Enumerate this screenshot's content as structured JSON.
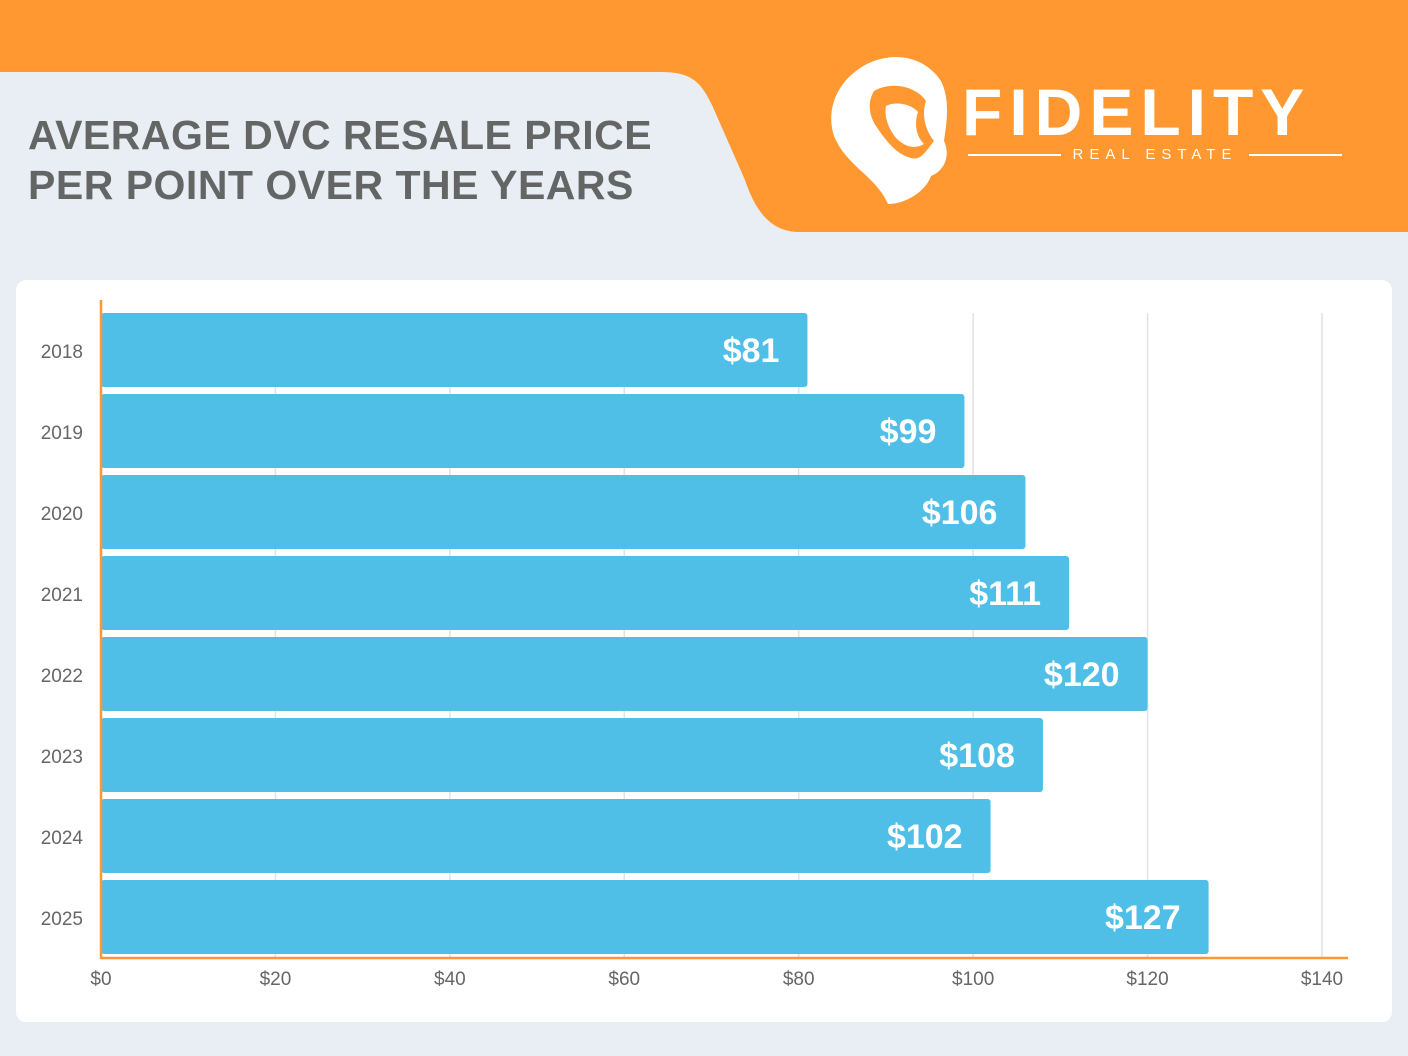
{
  "header": {
    "title_line1": "AVERAGE DVC RESALE PRICE",
    "title_line2": "PER POINT OVER THE YEARS"
  },
  "logo": {
    "icon": "lion-head-icon",
    "brand": "FIDELITY",
    "tagline": "REAL ESTATE"
  },
  "colors": {
    "orange": "#ff9830",
    "bar": "#4fbfe8",
    "title": "#646665",
    "background": "#e9edf4"
  },
  "chart_data": {
    "type": "bar",
    "orientation": "horizontal",
    "categories": [
      "2018",
      "2019",
      "2020",
      "2021",
      "2022",
      "2023",
      "2024",
      "2025"
    ],
    "values": [
      81,
      99,
      106,
      111,
      120,
      108,
      102,
      127
    ],
    "data_labels": [
      "$81",
      "$99",
      "$106",
      "$111",
      "$120",
      "$108",
      "$102",
      "$127"
    ],
    "title": "AVERAGE DVC RESALE PRICE PER POINT OVER THE YEARS",
    "xlabel": "",
    "ylabel": "",
    "xlim": [
      0,
      140
    ],
    "x_ticks": [
      0,
      20,
      40,
      60,
      80,
      100,
      120,
      140
    ],
    "x_tick_labels": [
      "$0",
      "$20",
      "$40",
      "$60",
      "$80",
      "$100",
      "$120",
      "$140"
    ],
    "grid": "vertical"
  }
}
